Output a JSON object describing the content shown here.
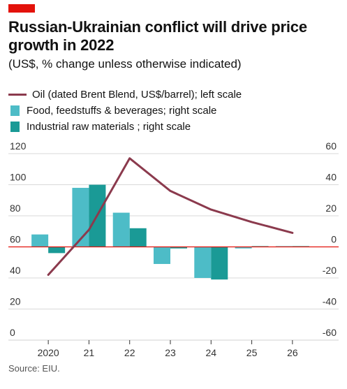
{
  "header": {
    "title": "Russian-Ukrainian conflict will drive price growth in 2022",
    "subtitle": "(US$, % change unless otherwise indicated)"
  },
  "legend": [
    {
      "label": "Oil (dated Brent Blend, US$/barrel); left scale",
      "color": "#8b3a4d",
      "kind": "line"
    },
    {
      "label": "Food, feedstuffs & beverages; right scale",
      "color": "#4dbcc7",
      "kind": "box"
    },
    {
      "label": "Industrial raw materials ; right scale",
      "color": "#1a9a96",
      "kind": "box"
    }
  ],
  "source": "Source: EIU.",
  "chart_data": {
    "type": "bar",
    "categories": [
      "2020",
      "21",
      "22",
      "23",
      "24",
      "25",
      "26"
    ],
    "line_series": {
      "name": "Oil (dated Brent Blend, US$/barrel); left scale",
      "axis": "left",
      "values": [
        42,
        71,
        117,
        96,
        84,
        76,
        69
      ]
    },
    "series": [
      {
        "name": "Food, feedstuffs & beverages; right scale",
        "axis": "right",
        "values": [
          8,
          38,
          22,
          -11,
          -20,
          -1,
          0.5
        ]
      },
      {
        "name": "Industrial raw materials ; right scale",
        "axis": "right",
        "values": [
          -4,
          40,
          12,
          -1,
          -21,
          0.5,
          0.5
        ]
      }
    ],
    "left_axis": {
      "ylim": [
        0,
        120
      ],
      "ticks": [
        "0",
        "20",
        "40",
        "60",
        "80",
        "100",
        "120"
      ]
    },
    "right_axis": {
      "ylim": [
        -60,
        60
      ],
      "ticks": [
        "-60",
        "-40",
        "-20",
        "0",
        "20",
        "40",
        "60"
      ]
    },
    "colors": {
      "oil": "#8b3a4d",
      "food": "#4dbcc7",
      "industrial": "#1a9a96",
      "zero_line": "#e3120b",
      "grid": "#d9d9d9"
    }
  }
}
